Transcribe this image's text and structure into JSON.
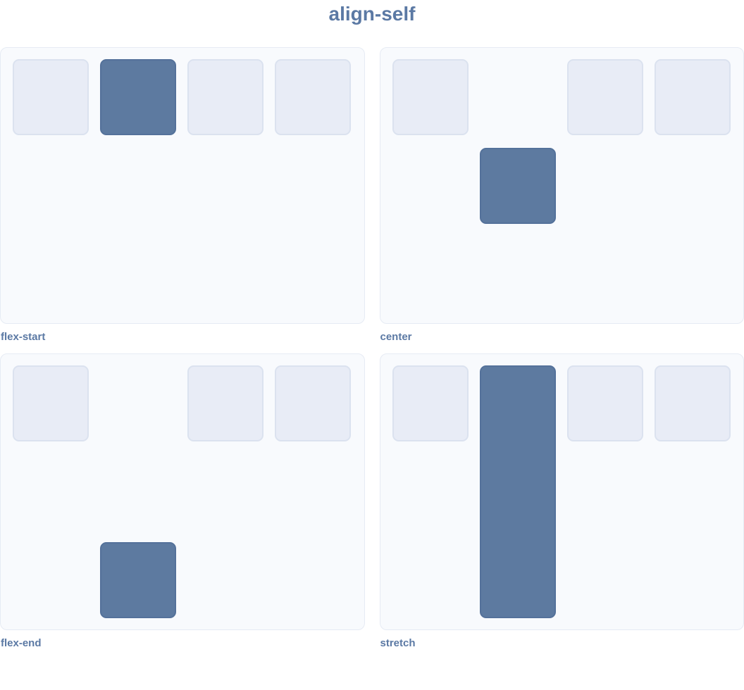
{
  "title": "align-self",
  "examples": [
    {
      "label": "flex-start",
      "align_self": "flex-start",
      "highlighted_item_index": 2,
      "item_count": 4
    },
    {
      "label": "center",
      "align_self": "center",
      "highlighted_item_index": 2,
      "item_count": 4
    },
    {
      "label": "flex-end",
      "align_self": "flex-end",
      "highlighted_item_index": 2,
      "item_count": 4
    },
    {
      "label": "stretch",
      "align_self": "stretch",
      "highlighted_item_index": 2,
      "item_count": 4
    }
  ],
  "colors": {
    "text": "#5b79a4",
    "accent": "#5d7aa0",
    "accent_border": "#54719a",
    "item_fill": "#e8ecf6",
    "item_border": "#dbe2ef",
    "panel_fill": "#f8fafd",
    "panel_border": "#e6ebf4"
  }
}
